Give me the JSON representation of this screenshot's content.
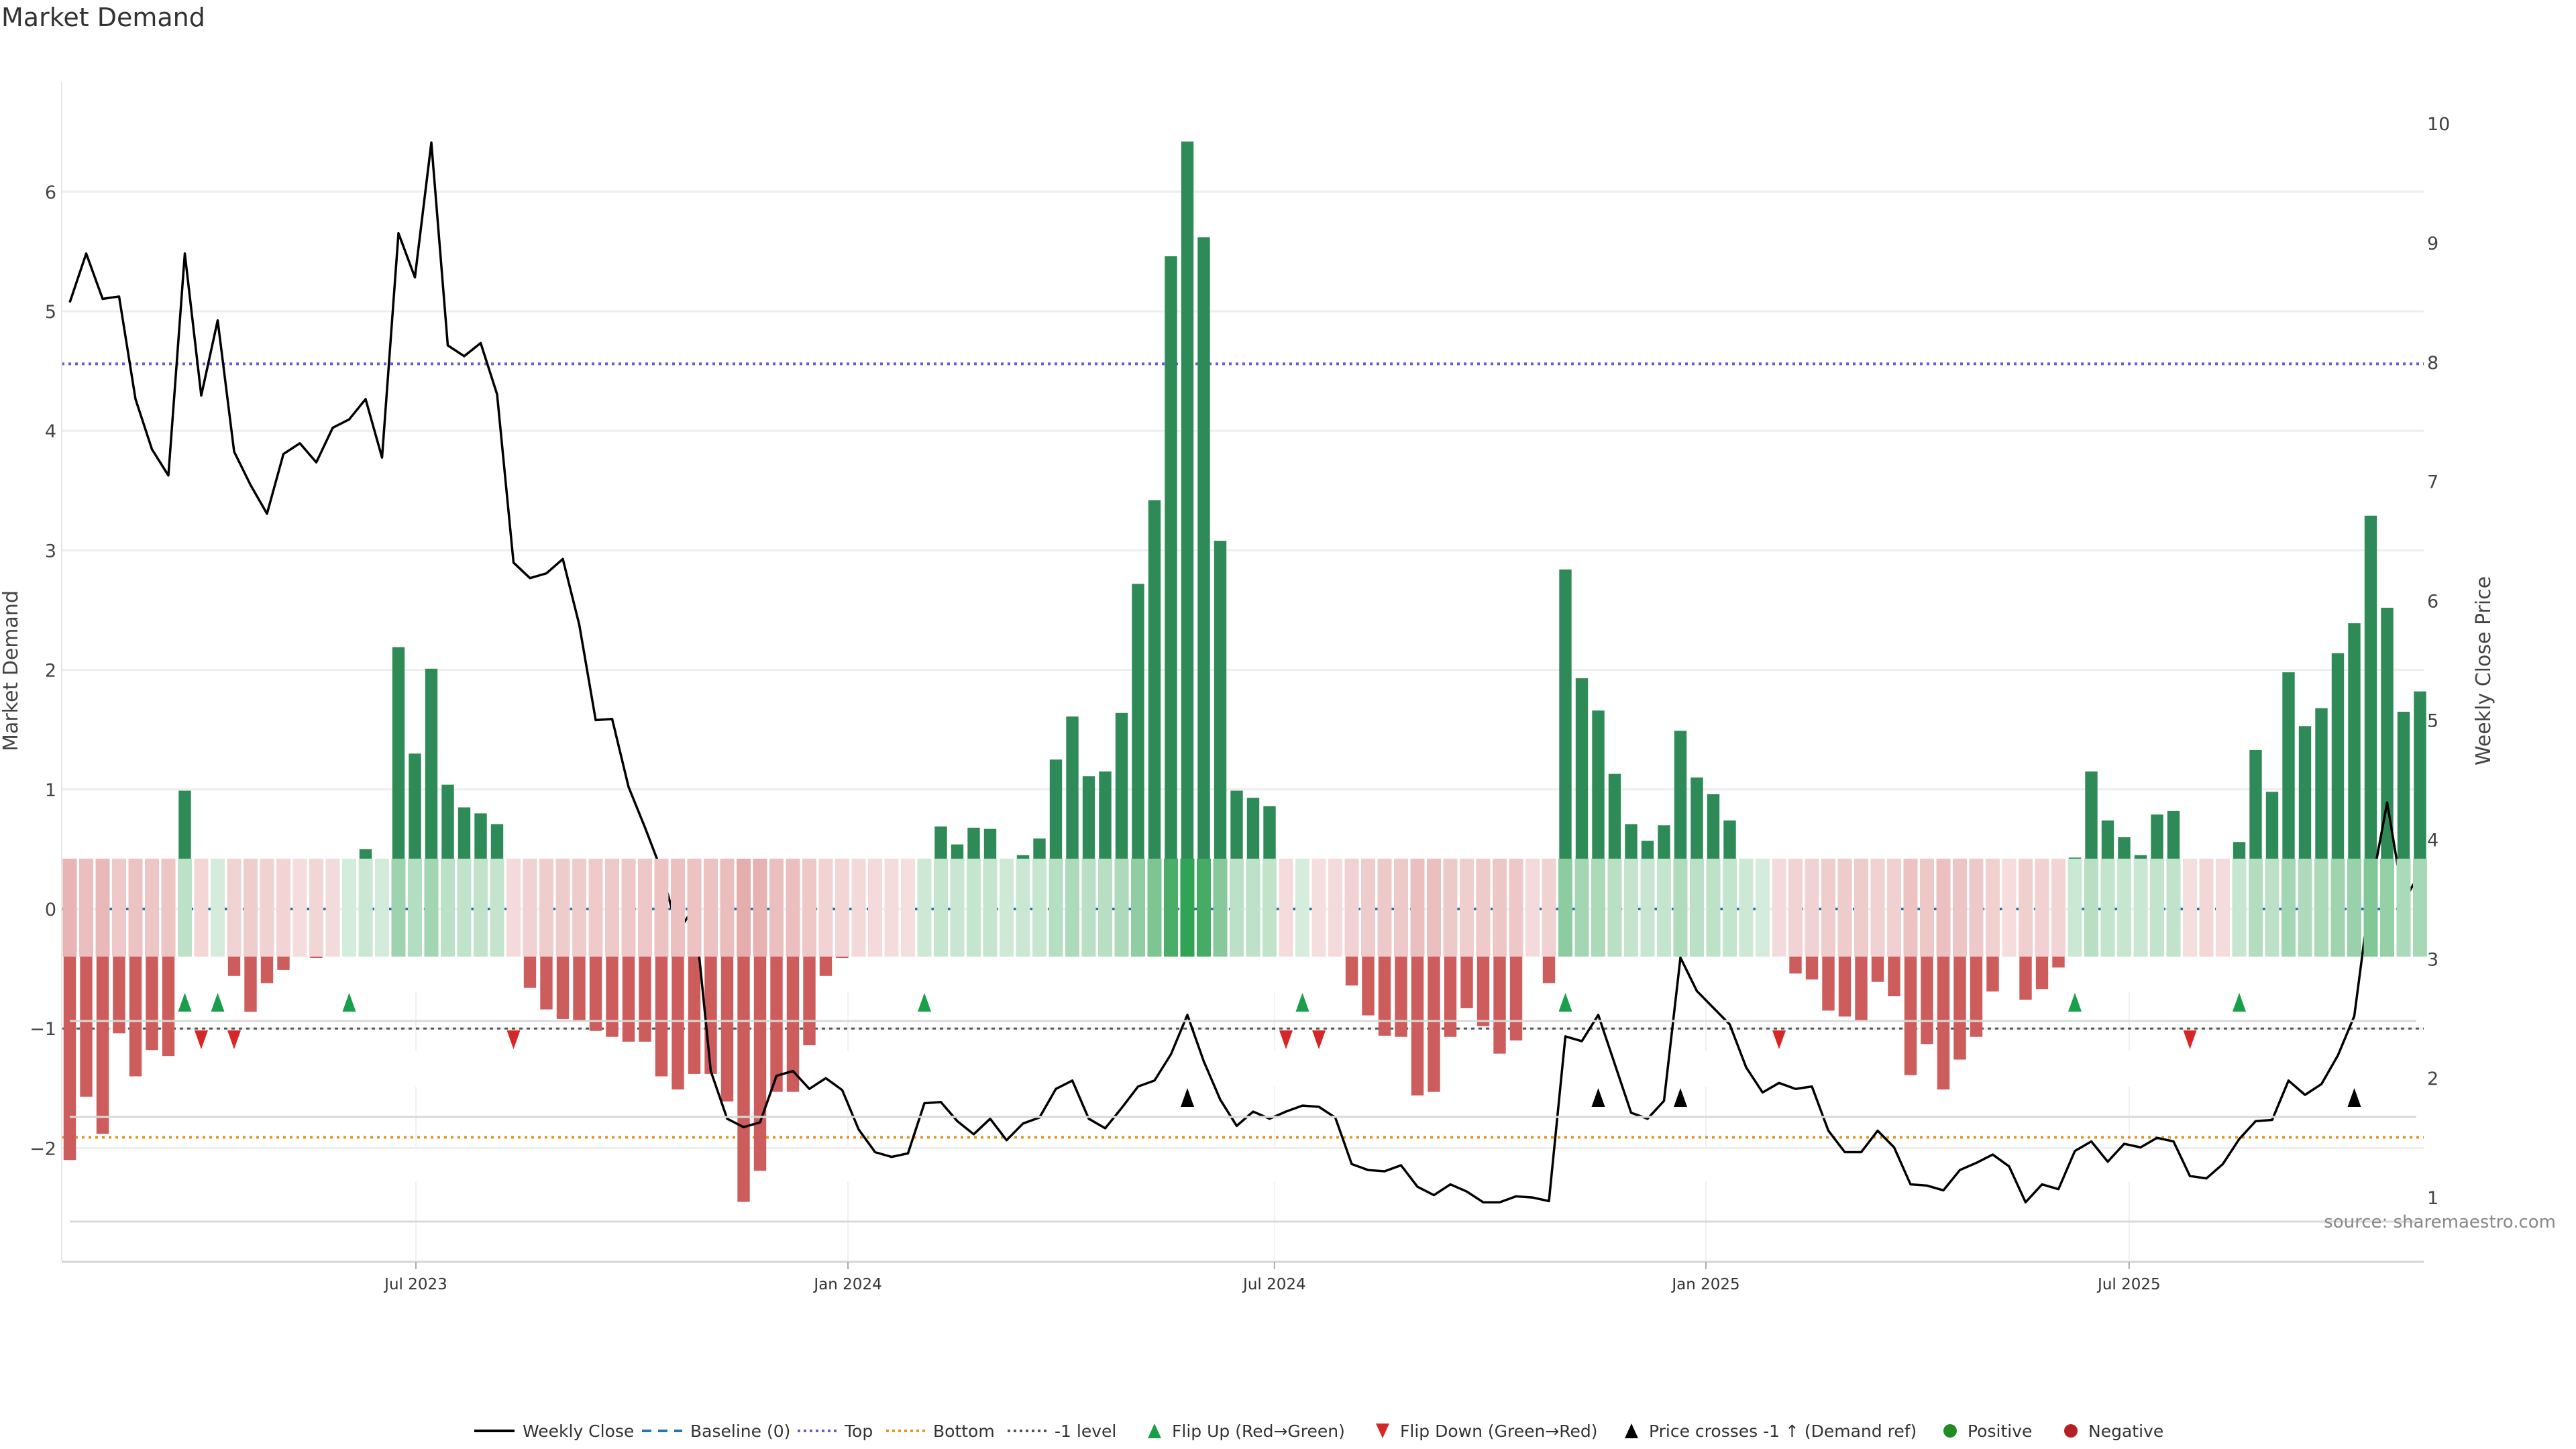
{
  "title": "Market Demand",
  "source": "source: sharemaestro.com",
  "chart_data": {
    "type": "bar",
    "title": "Market Demand",
    "ylabel": "Market Demand",
    "y2label": "Weekly Close Price",
    "ylim": [
      -2.95,
      6.92
    ],
    "y2lim": [
      0.47,
      10.35
    ],
    "yticks": [
      "−2",
      "−1",
      "0",
      "1",
      "2",
      "3",
      "4",
      "5",
      "6"
    ],
    "ytick_values": [
      -2,
      -1,
      0,
      1,
      2,
      3,
      4,
      5,
      6
    ],
    "y2ticks": [
      "1",
      "2",
      "3",
      "4",
      "5",
      "6",
      "7",
      "8",
      "9",
      "10"
    ],
    "y2tick_values": [
      1,
      2,
      3,
      4,
      5,
      6,
      7,
      8,
      9,
      10
    ],
    "x_ticks": [
      {
        "label": "Jul 2023",
        "week": 21.06
      },
      {
        "label": "Jan 2024",
        "week": 47.35
      },
      {
        "label": "Jul 2024",
        "week": 73.3
      },
      {
        "label": "Jan 2025",
        "week": 99.55
      },
      {
        "label": "Jul 2025",
        "week": 125.3
      }
    ],
    "levels": {
      "baseline": 0,
      "top": 4.56,
      "bottom": -1.91,
      "minus_one": -1
    },
    "colors": {
      "positive_bar": "#2e8b57",
      "negative_bar": "#cd5c5c",
      "baseline": "#1f77b4",
      "top": "#6a5acd",
      "bottom": "#e69520",
      "minus_one": "#555555",
      "flip_up": "#1a9e4a",
      "flip_down": "#d62728",
      "cross": "#000000",
      "positive": "#228b22",
      "negative": "#b22222",
      "heat_pos": [
        49,
        163,
        84
      ],
      "heat_neg": [
        205,
        92,
        92
      ]
    },
    "series": [
      {
        "name": "Market Demand",
        "type": "bar",
        "values": [
          -2.1,
          -1.57,
          -1.88,
          -1.04,
          -1.4,
          -1.18,
          -1.23,
          0.99,
          -0.34,
          0.05,
          -0.56,
          -0.86,
          -0.62,
          -0.51,
          -0.08,
          -0.41,
          -0.19,
          0.09,
          0.5,
          0.13,
          2.19,
          1.3,
          2.01,
          1.04,
          0.85,
          0.8,
          0.71,
          -0.23,
          -0.66,
          -0.84,
          -0.92,
          -0.93,
          -1.02,
          -1.07,
          -1.11,
          -1.11,
          -1.4,
          -1.51,
          -1.38,
          -1.38,
          -1.61,
          -2.45,
          -2.19,
          -1.53,
          -1.53,
          -1.14,
          -0.56,
          -0.41,
          -0.27,
          -0.21,
          -0.14,
          -0.02,
          0.35,
          0.69,
          0.54,
          0.68,
          0.67,
          0.3,
          0.45,
          0.59,
          1.25,
          1.61,
          1.11,
          1.15,
          1.64,
          2.72,
          3.42,
          5.46,
          6.42,
          5.62,
          3.08,
          0.99,
          0.93,
          0.86,
          -0.12,
          0.01,
          -0.04,
          -0.19,
          -0.64,
          -0.89,
          -1.06,
          -1.07,
          -1.56,
          -1.53,
          -1.07,
          -0.83,
          -0.98,
          -1.21,
          -1.1,
          -0.21,
          -0.62,
          2.84,
          1.93,
          1.66,
          1.13,
          0.71,
          0.57,
          0.7,
          1.49,
          1.1,
          0.96,
          0.74,
          0.35,
          0.02,
          -0.19,
          -0.54,
          -0.59,
          -0.85,
          -0.9,
          -0.93,
          -0.61,
          -0.73,
          -1.39,
          -1.13,
          -1.51,
          -1.26,
          -1.07,
          -0.69,
          -0.08,
          -0.76,
          -0.67,
          -0.49,
          0.43,
          1.15,
          0.74,
          0.6,
          0.45,
          0.79,
          0.82,
          -0.01,
          -0.36,
          -0.12,
          0.56,
          1.33,
          0.98,
          1.98,
          1.53,
          1.68,
          2.14,
          2.39,
          3.29,
          2.52,
          1.65,
          1.82
        ]
      },
      {
        "name": "Weekly Close",
        "type": "line",
        "axis": "right",
        "values": [
          8.5,
          8.91,
          8.53,
          8.55,
          7.69,
          7.27,
          7.05,
          8.91,
          7.72,
          8.35,
          7.25,
          6.97,
          6.73,
          7.23,
          7.32,
          7.16,
          7.45,
          7.52,
          7.69,
          7.2,
          9.08,
          8.71,
          9.84,
          8.14,
          8.05,
          8.16,
          7.73,
          6.32,
          6.19,
          6.23,
          6.35,
          5.8,
          5.0,
          5.01,
          4.44,
          4.1,
          3.74,
          3.23,
          3.43,
          2.06,
          1.66,
          1.59,
          1.63,
          2.02,
          2.06,
          1.91,
          2.0,
          1.9,
          1.57,
          1.38,
          1.34,
          1.37,
          1.79,
          1.8,
          1.64,
          1.53,
          1.66,
          1.48,
          1.62,
          1.67,
          1.91,
          1.98,
          1.66,
          1.58,
          1.75,
          1.93,
          1.98,
          2.2,
          2.53,
          2.14,
          1.82,
          1.6,
          1.72,
          1.66,
          1.72,
          1.77,
          1.76,
          1.67,
          1.28,
          1.23,
          1.22,
          1.27,
          1.09,
          1.02,
          1.11,
          1.05,
          0.96,
          0.96,
          1.01,
          1.0,
          0.97,
          2.35,
          2.31,
          2.53,
          2.12,
          1.71,
          1.66,
          1.81,
          3.01,
          2.73,
          2.59,
          2.45,
          2.09,
          1.88,
          1.96,
          1.91,
          1.93,
          1.56,
          1.38,
          1.38,
          1.56,
          1.42,
          1.11,
          1.1,
          1.06,
          1.23,
          1.29,
          1.36,
          1.26,
          0.96,
          1.11,
          1.07,
          1.39,
          1.47,
          1.3,
          1.45,
          1.42,
          1.5,
          1.47,
          1.18,
          1.16,
          1.28,
          1.49,
          1.64,
          1.65,
          1.98,
          1.86,
          1.95,
          2.19,
          2.52,
          3.57,
          4.31,
          3.48,
          3.72
        ]
      }
    ],
    "flip_up_weeks": [
      7,
      9,
      17,
      52,
      75,
      91,
      122,
      132
    ],
    "flip_down_weeks": [
      8,
      10,
      27,
      74,
      76,
      104,
      129
    ],
    "price_cross_weeks": [
      68,
      93,
      98,
      139
    ],
    "legend_position": "bottom-center"
  },
  "legend": [
    {
      "label": "Weekly Close",
      "kind": "line"
    },
    {
      "label": "Baseline (0)",
      "kind": "baseline"
    },
    {
      "label": "Top",
      "kind": "top"
    },
    {
      "label": "Bottom",
      "kind": "bottom"
    },
    {
      "label": "-1 level",
      "kind": "minus_one"
    },
    {
      "label": "Flip Up (Red→Green)",
      "kind": "flip_up"
    },
    {
      "label": "Flip Down (Green→Red)",
      "kind": "flip_down"
    },
    {
      "label": "Price crosses -1 ↑ (Demand ref)",
      "kind": "cross"
    },
    {
      "label": "Positive",
      "kind": "positive"
    },
    {
      "label": "Negative",
      "kind": "negative"
    }
  ]
}
